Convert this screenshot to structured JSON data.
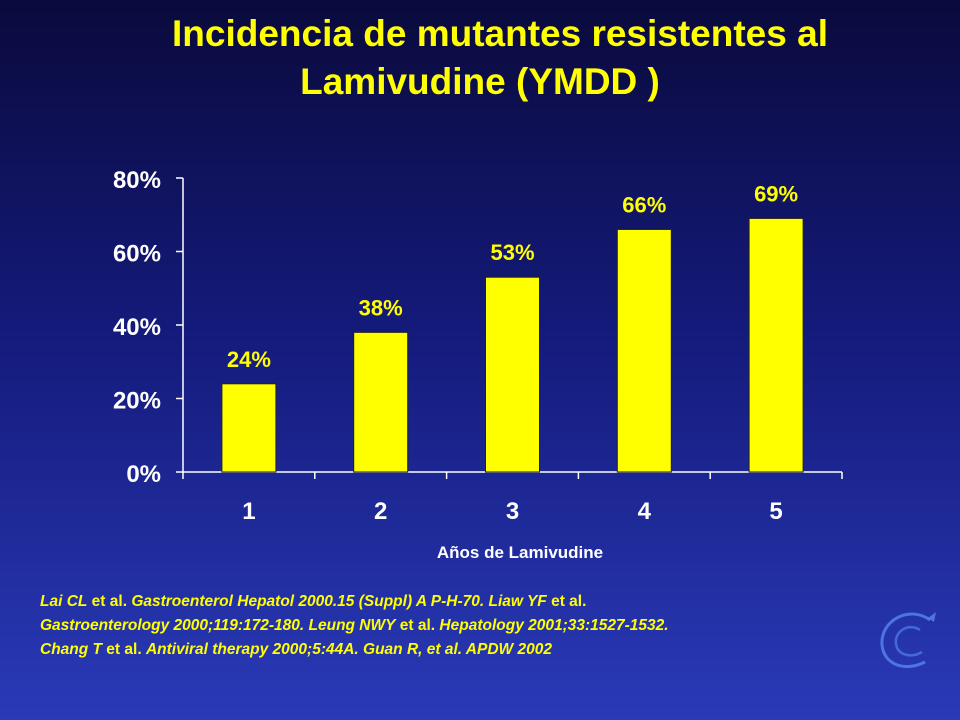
{
  "title": {
    "line1": "Incidencia de mutantes resistentes al",
    "line2": "Lamivudine (YMDD )"
  },
  "chart_data": {
    "type": "bar",
    "title": "",
    "xlabel": "Años de Lamivudine",
    "ylabel": "",
    "categories": [
      "1",
      "2",
      "3",
      "4",
      "5"
    ],
    "values": [
      24,
      38,
      53,
      66,
      69
    ],
    "data_labels": [
      "24%",
      "38%",
      "53%",
      "66%",
      "69%"
    ],
    "ylim": [
      0,
      80
    ],
    "yticks": [
      0,
      20,
      40,
      60,
      80
    ],
    "ytick_labels": [
      "0%",
      "20%",
      "40%",
      "60%",
      "80%"
    ],
    "grid": false,
    "bar_color": "#ffff00",
    "label_color": "#ffff00",
    "axis_color": "#ffffff"
  },
  "citation": {
    "l1": [
      {
        "t": "Lai CL",
        "i": true
      },
      {
        "t": " et al. ",
        "i": false
      },
      {
        "t": "Gastroenterol Hepatol 2000.15 (Suppl) A P-H-70. Liaw YF",
        "i": true
      },
      {
        "t": " et al.",
        "i": false
      }
    ],
    "l2": [
      {
        "t": "Gastroenterology 2000;119:172-180.  Leung NWY",
        "i": true
      },
      {
        "t": " et al. ",
        "i": false
      },
      {
        "t": "Hepatology 2001;33:1527-1532.",
        "i": true
      }
    ],
    "l3": [
      {
        "t": "Chang T",
        "i": true
      },
      {
        "t": " et al. ",
        "i": false
      },
      {
        "t": "Antiviral therapy 2000;5:44A.  Guan R, et al. APDW 2002",
        "i": true
      }
    ]
  },
  "logo": {
    "icon": "swirl-logo-icon",
    "color": "#5a8cf0"
  }
}
